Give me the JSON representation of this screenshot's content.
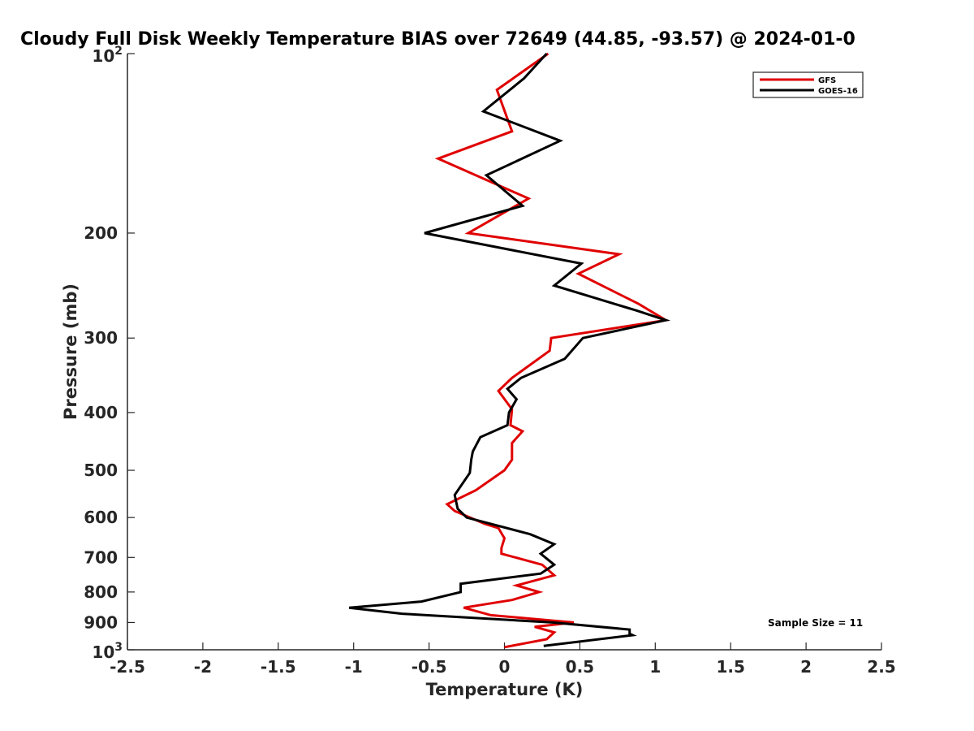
{
  "chart_data": {
    "type": "line",
    "title": "Cloudy Full Disk Weekly Temperature BIAS over 72649 (44.85, -93.57) @ 2024-01-0",
    "xlabel": "Temperature (K)",
    "ylabel": "Pressure (mb)",
    "xlim": [
      -2.5,
      2.5
    ],
    "ylim": [
      100,
      1000
    ],
    "y_scale": "log",
    "y_reversed": true,
    "x_ticks": [
      "-2.5",
      "-2",
      "-1.5",
      "-1",
      "-0.5",
      "0",
      "0.5",
      "1",
      "1.5",
      "2",
      "2.5"
    ],
    "y_ticks": [
      {
        "value": 100,
        "label": "",
        "base": "10",
        "exp": "2"
      },
      {
        "value": 200,
        "label": "200"
      },
      {
        "value": 300,
        "label": "300"
      },
      {
        "value": 400,
        "label": "400"
      },
      {
        "value": 500,
        "label": "500"
      },
      {
        "value": 600,
        "label": "600"
      },
      {
        "value": 700,
        "label": "700"
      },
      {
        "value": 800,
        "label": "800"
      },
      {
        "value": 900,
        "label": "900"
      },
      {
        "value": 1000,
        "label": "",
        "base": "10",
        "exp": "3"
      }
    ],
    "grid": false,
    "legend_position": "top-right",
    "series": [
      {
        "name": "GFS",
        "color": "#e00000",
        "points": [
          [
            0.29,
            100
          ],
          [
            -0.05,
            115
          ],
          [
            0.05,
            135
          ],
          [
            -0.44,
            150
          ],
          [
            0.16,
            175
          ],
          [
            -0.24,
            200
          ],
          [
            0.76,
            217
          ],
          [
            0.49,
            234
          ],
          [
            0.89,
            263
          ],
          [
            1.07,
            280
          ],
          [
            0.31,
            300
          ],
          [
            0.3,
            315
          ],
          [
            0.05,
            350
          ],
          [
            -0.04,
            368
          ],
          [
            0.05,
            395
          ],
          [
            0.04,
            420
          ],
          [
            0.12,
            430
          ],
          [
            0.05,
            450
          ],
          [
            0.05,
            480
          ],
          [
            0.0,
            500
          ],
          [
            -0.19,
            540
          ],
          [
            -0.38,
            570
          ],
          [
            -0.33,
            585
          ],
          [
            -0.13,
            615
          ],
          [
            -0.04,
            625
          ],
          [
            0.0,
            650
          ],
          [
            -0.02,
            675
          ],
          [
            -0.02,
            690
          ],
          [
            0.25,
            720
          ],
          [
            0.33,
            750
          ],
          [
            0.08,
            780
          ],
          [
            0.23,
            800
          ],
          [
            0.05,
            825
          ],
          [
            -0.27,
            850
          ],
          [
            -0.09,
            875
          ],
          [
            0.46,
            900
          ],
          [
            0.2,
            915
          ],
          [
            0.33,
            935
          ],
          [
            0.28,
            960
          ],
          [
            0.0,
            990
          ]
        ]
      },
      {
        "name": "GOES-16",
        "color": "#000000",
        "points": [
          [
            0.28,
            100
          ],
          [
            0.13,
            110
          ],
          [
            -0.14,
            125
          ],
          [
            0.37,
            140
          ],
          [
            -0.12,
            160
          ],
          [
            0.12,
            180
          ],
          [
            -0.53,
            200
          ],
          [
            0.51,
            225
          ],
          [
            0.33,
            245
          ],
          [
            0.88,
            270
          ],
          [
            1.07,
            280
          ],
          [
            0.52,
            300
          ],
          [
            0.4,
            325
          ],
          [
            0.11,
            350
          ],
          [
            0.02,
            365
          ],
          [
            0.08,
            380
          ],
          [
            0.03,
            400
          ],
          [
            0.02,
            420
          ],
          [
            -0.16,
            440
          ],
          [
            -0.21,
            465
          ],
          [
            -0.22,
            480
          ],
          [
            -0.23,
            505
          ],
          [
            -0.33,
            550
          ],
          [
            -0.31,
            580
          ],
          [
            -0.25,
            600
          ],
          [
            0.17,
            640
          ],
          [
            0.33,
            665
          ],
          [
            0.24,
            690
          ],
          [
            0.33,
            720
          ],
          [
            0.24,
            745
          ],
          [
            -0.29,
            775
          ],
          [
            -0.29,
            800
          ],
          [
            -0.55,
            830
          ],
          [
            -1.03,
            850
          ],
          [
            -0.68,
            870
          ],
          [
            0.32,
            900
          ],
          [
            0.83,
            925
          ],
          [
            0.83,
            940
          ],
          [
            0.85,
            945
          ],
          [
            0.26,
            985
          ]
        ]
      }
    ],
    "legend": [
      {
        "name": "GFS",
        "color": "#e00000"
      },
      {
        "name": "GOES-16",
        "color": "#000000"
      }
    ],
    "annotation": "Sample Size = 11"
  }
}
